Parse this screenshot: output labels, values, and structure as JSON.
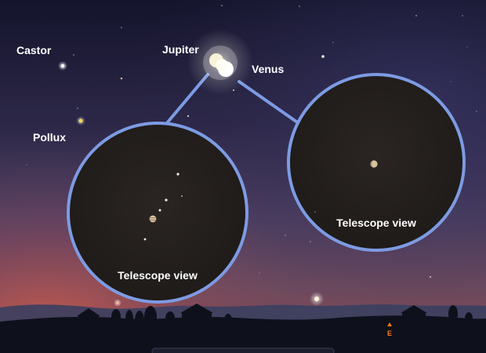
{
  "labels": {
    "castor": "Castor",
    "pollux": "Pollux",
    "jupiter": "Jupiter",
    "venus": "Venus"
  },
  "insets": [
    {
      "title": "Telescope view"
    },
    {
      "title": "Telescope view"
    }
  ],
  "compass": {
    "direction": "E"
  },
  "colors": {
    "sky_top": "#15152e",
    "sky_mid": "#4b3f63",
    "horizon_glow": "#c0544a",
    "ground": "#0d0f1a",
    "circle_fill": "#231f1c",
    "circle_ring": "#7d9be3",
    "compass": "#ff7a10"
  }
}
